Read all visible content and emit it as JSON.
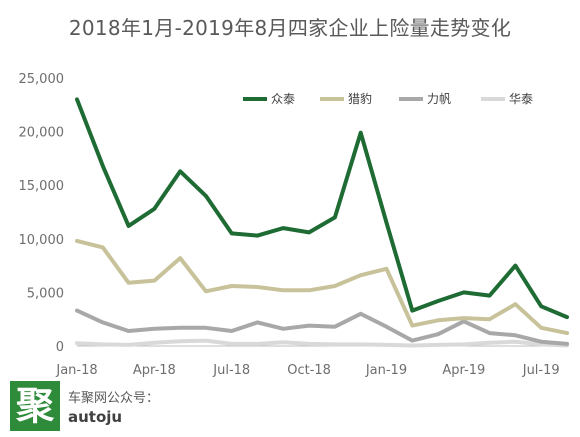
{
  "chart_data": {
    "type": "line",
    "title": "2018年1月-2019年8月四家企业上险量走势变化",
    "x": [
      "2018-01",
      "2018-02",
      "2018-03",
      "2018-04",
      "2018-05",
      "2018-06",
      "2018-07",
      "2018-08",
      "2018-09",
      "2018-10",
      "2018-11",
      "2018-12",
      "2019-01",
      "2019-02",
      "2019-03",
      "2019-04",
      "2019-05",
      "2019-06",
      "2019-07",
      "2019-08"
    ],
    "x_tick_labels": [
      {
        "x": "2018-01",
        "label": "Jan-18"
      },
      {
        "x": "2018-04",
        "label": "Apr-18"
      },
      {
        "x": "2018-07",
        "label": "Jul-18"
      },
      {
        "x": "2018-10",
        "label": "Oct-18"
      },
      {
        "x": "2019-01",
        "label": "Jan-19"
      },
      {
        "x": "2019-04",
        "label": "Apr-19"
      },
      {
        "x": "2019-07",
        "label": "Jul-19"
      }
    ],
    "ylim": [
      0,
      25000
    ],
    "yticks": [
      0,
      5000,
      10000,
      15000,
      20000,
      25000
    ],
    "ytick_labels": [
      "0",
      "5,000",
      "10,000",
      "15,000",
      "20,000",
      "25,000"
    ],
    "xlabel": "",
    "ylabel": "",
    "grid": false,
    "legend_position": "top-right",
    "series": [
      {
        "name": "众泰",
        "color": "#1e6b34",
        "values": [
          23000,
          16800,
          11200,
          12800,
          16300,
          14000,
          10500,
          10300,
          11000,
          10600,
          12000,
          19900,
          11500,
          3300,
          4200,
          5000,
          4700,
          7500,
          3700,
          2700
        ]
      },
      {
        "name": "猎豹",
        "color": "#c8c29a",
        "values": [
          9800,
          9200,
          5900,
          6100,
          8200,
          5100,
          5600,
          5500,
          5200,
          5200,
          5600,
          6600,
          7200,
          1900,
          2400,
          2600,
          2500,
          3900,
          1700,
          1200
        ]
      },
      {
        "name": "力帆",
        "color": "#a8a8a8",
        "values": [
          3300,
          2200,
          1400,
          1600,
          1700,
          1700,
          1400,
          2200,
          1600,
          1900,
          1800,
          3000,
          1800,
          500,
          1100,
          2300,
          1200,
          1000,
          400,
          200
        ]
      },
      {
        "name": "华泰",
        "color": "#d9d9d9",
        "values": [
          250,
          150,
          100,
          300,
          450,
          500,
          200,
          200,
          350,
          200,
          150,
          150,
          100,
          50,
          100,
          150,
          300,
          400,
          150,
          50
        ]
      }
    ]
  },
  "footer": {
    "logo_char": "聚",
    "source_label": "车聚网公众号：",
    "source_account": "autoju"
  }
}
